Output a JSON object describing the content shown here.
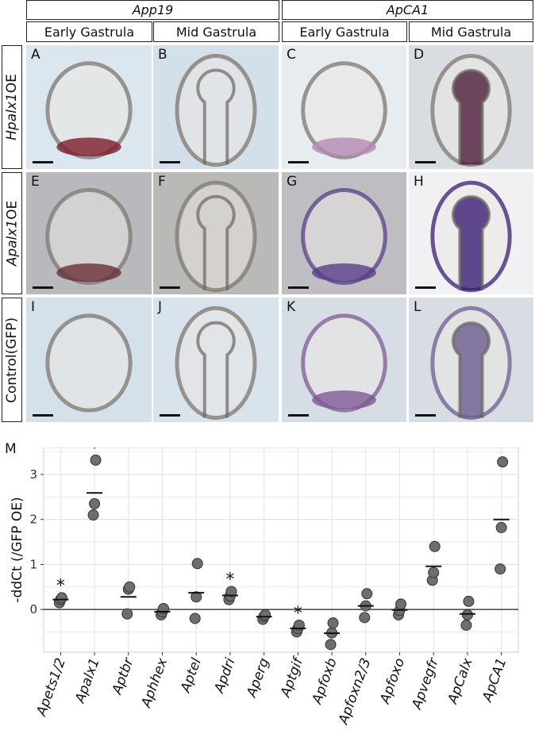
{
  "header": {
    "genes": [
      "App19",
      "ApCA1"
    ],
    "stages": [
      "Early Gastrula",
      "Mid Gastrula",
      "Early Gastrula",
      "Mid Gastrula"
    ]
  },
  "rows": [
    {
      "label_gene": "Hpalx1",
      "label_suffix": "OE"
    },
    {
      "label_gene": "Apalx1",
      "label_suffix": "OE"
    },
    {
      "label_gene": "",
      "label_suffix": "Control(GFP)"
    }
  ],
  "panels": [
    {
      "letter": "A",
      "bg": "#dbe6ee",
      "stain": "#7a1d2a",
      "stage": "early"
    },
    {
      "letter": "B",
      "bg": "#d4e0e9",
      "stain": null,
      "stage": "mid"
    },
    {
      "letter": "C",
      "bg": "#e6ecf0",
      "stain": "#b58ab4",
      "stage": "early"
    },
    {
      "letter": "D",
      "bg": "#d9dde2",
      "stain": "#4b1d3a",
      "stage": "mid"
    },
    {
      "letter": "E",
      "bg": "#b7b9bc",
      "stain": "#6a2f3a",
      "stage": "early"
    },
    {
      "letter": "F",
      "bg": "#b9b9b7",
      "stain": null,
      "stage": "mid"
    },
    {
      "letter": "G",
      "bg": "#bdbdc2",
      "stain": "#5a3f88",
      "stage": "early"
    },
    {
      "letter": "H",
      "bg": "#f1f1f3",
      "stain": "#3a1e73",
      "stage": "mid"
    },
    {
      "letter": "I",
      "bg": "#d5e1ea",
      "stain": null,
      "stage": "early"
    },
    {
      "letter": "J",
      "bg": "#d8e3ec",
      "stain": null,
      "stage": "mid"
    },
    {
      "letter": "K",
      "bg": "#d7dde4",
      "stain": "#7f5a97",
      "stage": "early"
    },
    {
      "letter": "L",
      "bg": "#d7dde3",
      "stain": "#6e5d8e",
      "stage": "mid"
    }
  ],
  "plot_label": "M",
  "chart_data": {
    "type": "scatter",
    "ylabel": "-ddCt (/GFP OE)",
    "xlabel": "",
    "ylim": [
      -0.95,
      3.6
    ],
    "yticks": [
      0,
      1,
      2,
      3
    ],
    "ytick_labels": [
      "0",
      "1",
      "2",
      "3"
    ],
    "grid": true,
    "categories": [
      "Apets1/2",
      "Apalx1",
      "Aptbr",
      "Aphhex",
      "Aptel",
      "Apdri",
      "Aperg",
      "Aptgif",
      "Apfoxb",
      "Apfoxn2/3",
      "Apfoxo",
      "Apvegfr",
      "ApCalx",
      "ApCA1"
    ],
    "points": [
      [
        0.15,
        0.22,
        0.26
      ],
      [
        2.1,
        2.35,
        3.32
      ],
      [
        -0.1,
        0.45,
        0.5
      ],
      [
        -0.12,
        -0.05,
        0.02
      ],
      [
        -0.2,
        0.28,
        1.02
      ],
      [
        0.22,
        0.3,
        0.4
      ],
      [
        -0.22,
        -0.15,
        -0.12
      ],
      [
        -0.5,
        -0.42,
        -0.35
      ],
      [
        -0.78,
        -0.52,
        -0.3
      ],
      [
        -0.18,
        0.08,
        0.35
      ],
      [
        -0.12,
        -0.02,
        0.12
      ],
      [
        0.65,
        0.82,
        1.4
      ],
      [
        -0.35,
        -0.12,
        0.18
      ],
      [
        0.9,
        1.82,
        3.28
      ]
    ],
    "means": [
      0.22,
      2.59,
      0.28,
      -0.05,
      0.37,
      0.31,
      -0.16,
      -0.42,
      -0.53,
      0.08,
      -0.01,
      0.96,
      -0.1,
      2.0
    ],
    "significant": [
      "Apets1/2",
      "Apalx1",
      "Apdri",
      "Aptgif"
    ],
    "significance_marker": "*"
  }
}
